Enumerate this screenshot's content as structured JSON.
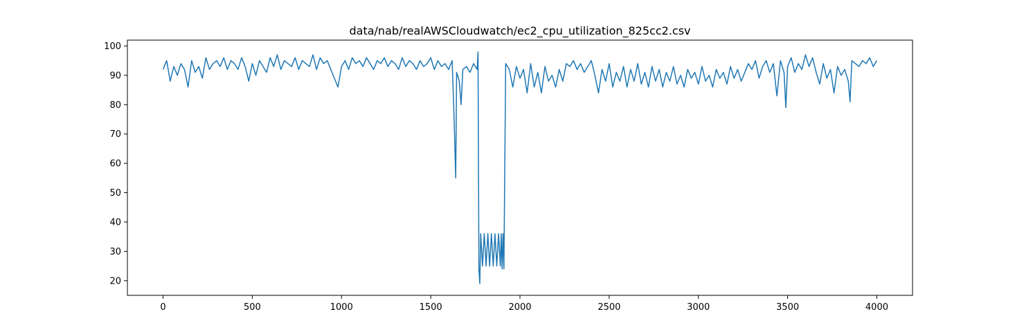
{
  "chart_data": {
    "type": "line",
    "title": "data/nab/realAWSCloudwatch/ec2_cpu_utilization_825cc2.csv",
    "xlabel": "",
    "ylabel": "",
    "xlim": [
      -200,
      4200
    ],
    "ylim": [
      15,
      102
    ],
    "x_ticks": [
      0,
      500,
      1000,
      1500,
      2000,
      2500,
      3000,
      3500,
      4000
    ],
    "y_ticks": [
      20,
      30,
      40,
      50,
      60,
      70,
      80,
      90,
      100
    ],
    "grid": false,
    "legend": "none",
    "series": [
      {
        "color": "#1f77b4",
        "x": [
          0,
          20,
          40,
          60,
          80,
          100,
          120,
          140,
          160,
          180,
          200,
          220,
          240,
          260,
          280,
          300,
          320,
          340,
          360,
          380,
          400,
          420,
          440,
          460,
          480,
          500,
          520,
          540,
          560,
          580,
          600,
          620,
          640,
          660,
          680,
          700,
          720,
          740,
          760,
          780,
          800,
          820,
          840,
          860,
          880,
          900,
          920,
          940,
          960,
          980,
          1000,
          1020,
          1040,
          1060,
          1080,
          1100,
          1120,
          1140,
          1160,
          1180,
          1200,
          1220,
          1240,
          1260,
          1280,
          1300,
          1320,
          1340,
          1360,
          1380,
          1400,
          1420,
          1440,
          1460,
          1480,
          1500,
          1520,
          1540,
          1560,
          1580,
          1600,
          1620,
          1630,
          1640,
          1645,
          1650,
          1660,
          1670,
          1680,
          1700,
          1720,
          1740,
          1760,
          1765,
          1770,
          1775,
          1780,
          1790,
          1800,
          1810,
          1820,
          1830,
          1840,
          1850,
          1860,
          1870,
          1880,
          1890,
          1895,
          1900,
          1905,
          1910,
          1920,
          1940,
          1960,
          1980,
          2000,
          2020,
          2040,
          2060,
          2080,
          2100,
          2120,
          2140,
          2160,
          2180,
          2200,
          2220,
          2240,
          2260,
          2280,
          2300,
          2320,
          2340,
          2360,
          2380,
          2400,
          2420,
          2440,
          2460,
          2480,
          2500,
          2520,
          2540,
          2560,
          2580,
          2600,
          2620,
          2640,
          2660,
          2680,
          2700,
          2720,
          2740,
          2760,
          2780,
          2800,
          2820,
          2840,
          2860,
          2880,
          2900,
          2920,
          2940,
          2960,
          2980,
          3000,
          3020,
          3040,
          3060,
          3080,
          3100,
          3120,
          3140,
          3160,
          3180,
          3200,
          3220,
          3240,
          3260,
          3280,
          3300,
          3320,
          3340,
          3360,
          3380,
          3400,
          3420,
          3440,
          3460,
          3480,
          3490,
          3500,
          3520,
          3540,
          3560,
          3580,
          3600,
          3620,
          3640,
          3660,
          3680,
          3700,
          3720,
          3740,
          3760,
          3780,
          3800,
          3820,
          3840,
          3850,
          3860,
          3880,
          3900,
          3920,
          3940,
          3960,
          3980,
          4000
        ],
        "y": [
          92,
          95,
          88,
          93,
          90,
          94,
          92,
          86,
          95,
          91,
          93,
          89,
          96,
          92,
          94,
          95,
          93,
          96,
          92,
          95,
          94,
          92,
          96,
          93,
          88,
          94,
          90,
          95,
          93,
          91,
          96,
          93,
          97,
          92,
          95,
          94,
          93,
          96,
          92,
          95,
          94,
          93,
          97,
          92,
          96,
          94,
          95,
          92,
          89,
          86,
          93,
          95,
          92,
          96,
          94,
          95,
          93,
          96,
          94,
          92,
          95,
          94,
          96,
          93,
          95,
          94,
          92,
          96,
          93,
          95,
          94,
          92,
          95,
          93,
          94,
          96,
          92,
          95,
          93,
          94,
          92,
          95,
          77,
          55,
          91,
          90,
          88,
          80,
          92,
          93,
          91,
          94,
          92,
          98,
          24,
          19,
          36,
          25,
          36,
          25,
          36,
          25,
          36,
          25,
          36,
          25,
          36,
          25,
          36,
          24,
          36,
          24,
          94,
          92,
          86,
          93,
          89,
          92,
          84,
          94,
          86,
          91,
          84,
          93,
          88,
          90,
          86,
          92,
          88,
          94,
          93,
          95,
          92,
          94,
          91,
          93,
          95,
          90,
          84,
          92,
          88,
          94,
          86,
          91,
          88,
          93,
          86,
          92,
          88,
          94,
          87,
          91,
          86,
          93,
          88,
          92,
          86,
          91,
          88,
          93,
          87,
          90,
          86,
          92,
          89,
          91,
          87,
          93,
          88,
          90,
          86,
          92,
          89,
          91,
          87,
          93,
          89,
          92,
          88,
          91,
          94,
          92,
          95,
          89,
          93,
          95,
          91,
          94,
          83,
          95,
          91,
          79,
          93,
          96,
          91,
          94,
          92,
          97,
          93,
          96,
          91,
          87,
          94,
          89,
          92,
          84,
          93,
          90,
          92,
          88,
          81,
          95,
          94,
          93,
          95,
          94,
          96,
          93,
          95
        ]
      }
    ]
  }
}
